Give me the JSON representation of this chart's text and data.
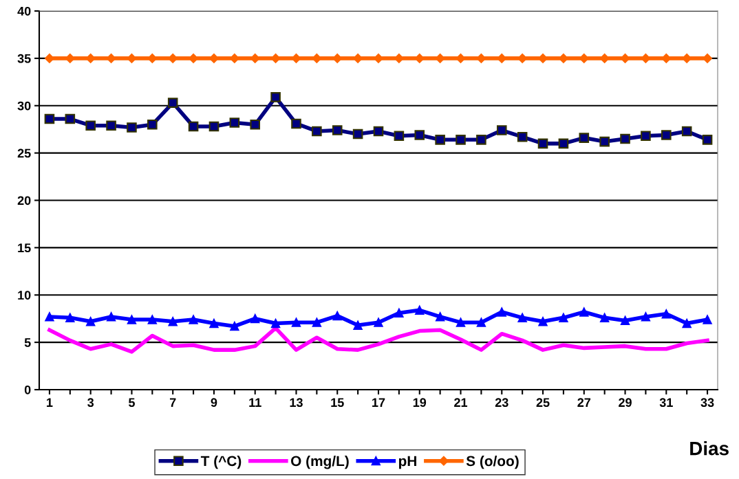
{
  "chart_data": {
    "type": "line",
    "xlabel": "Dias",
    "categories": [
      "1",
      null,
      "3",
      null,
      "5",
      null,
      "7",
      null,
      "9",
      null,
      "11",
      null,
      "13",
      null,
      "15",
      null,
      "17",
      null,
      "19",
      null,
      "21",
      null,
      "23",
      null,
      "25",
      null,
      "27",
      null,
      "29",
      null,
      "31",
      null,
      "33"
    ],
    "ylim": [
      0,
      40
    ],
    "yticks": [
      0,
      5,
      10,
      15,
      20,
      25,
      30,
      35,
      40
    ],
    "grid": "y",
    "legend": "bottom",
    "series": [
      {
        "name": "T (^C)",
        "color": "#000080",
        "marker": "square",
        "values": [
          28.6,
          28.6,
          27.9,
          27.9,
          27.7,
          28.0,
          30.3,
          27.8,
          27.8,
          28.2,
          28.0,
          30.9,
          28.1,
          27.3,
          27.4,
          27.0,
          27.3,
          26.8,
          26.9,
          26.4,
          26.4,
          26.4,
          27.4,
          26.7,
          26.0,
          26.0,
          26.6,
          26.2,
          26.5,
          26.8,
          26.9,
          27.3,
          26.4
        ]
      },
      {
        "name": "O (mg/L)",
        "color": "#ff00ff",
        "marker": "none",
        "values": [
          6.3,
          5.2,
          4.3,
          4.8,
          4.0,
          5.7,
          4.6,
          4.7,
          4.2,
          4.2,
          4.6,
          6.5,
          4.2,
          5.5,
          4.3,
          4.2,
          4.8,
          5.6,
          6.2,
          6.3,
          5.3,
          4.2,
          5.9,
          5.2,
          4.2,
          4.7,
          4.4,
          4.5,
          4.6,
          4.3,
          4.3,
          4.9,
          5.2
        ]
      },
      {
        "name": "pH",
        "color": "#0000ff",
        "marker": "triangle",
        "values": [
          7.7,
          7.6,
          7.2,
          7.7,
          7.4,
          7.4,
          7.2,
          7.4,
          7.0,
          6.7,
          7.5,
          7.0,
          7.1,
          7.1,
          7.8,
          6.8,
          7.1,
          8.1,
          8.4,
          7.7,
          7.1,
          7.1,
          8.2,
          7.6,
          7.2,
          7.6,
          8.2,
          7.6,
          7.3,
          7.7,
          8.0,
          7.0,
          7.4
        ]
      },
      {
        "name": "S (o/oo)",
        "color": "#ff6600",
        "marker": "diamond",
        "values": [
          35,
          35,
          35,
          35,
          35,
          35,
          35,
          35,
          35,
          35,
          35,
          35,
          35,
          35,
          35,
          35,
          35,
          35,
          35,
          35,
          35,
          35,
          35,
          35,
          35,
          35,
          35,
          35,
          35,
          35,
          35,
          35,
          35
        ]
      }
    ]
  }
}
